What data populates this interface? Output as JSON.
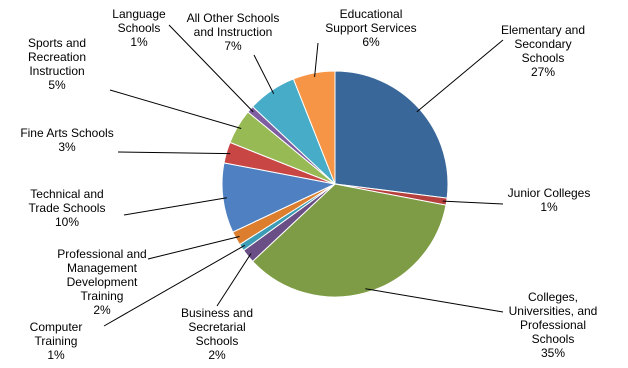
{
  "chart_data": {
    "type": "pie",
    "categories": [
      "Elementary and Secondary Schools",
      "Junior Colleges",
      "Colleges, Universities, and Professional Schools",
      "Business and Secretarial Schools",
      "Computer Training",
      "Professional and Management Development Training",
      "Technical and Trade Schools",
      "Fine Arts Schools",
      "Sports and Recreation Instruction",
      "Language Schools",
      "All Other Schools and Instruction",
      "Educational Support Services"
    ],
    "values": [
      27,
      1,
      35,
      2,
      1,
      2,
      10,
      3,
      5,
      1,
      7,
      6
    ],
    "slices": [
      {
        "label_lines": [
          "Elementary and",
          "Secondary",
          "Schools"
        ],
        "value": 27,
        "pct": "27%",
        "color": "#3A679A"
      },
      {
        "label_lines": [
          "Junior Colleges"
        ],
        "value": 1,
        "pct": "1%",
        "color": "#B5403E"
      },
      {
        "label_lines": [
          "Colleges,",
          "Universities, and",
          "Professional",
          "Schools"
        ],
        "value": 35,
        "pct": "35%",
        "color": "#7E9C46"
      },
      {
        "label_lines": [
          "Business and",
          "Secretarial",
          "Schools"
        ],
        "value": 2,
        "pct": "2%",
        "color": "#6A4E86"
      },
      {
        "label_lines": [
          "Computer",
          "Training"
        ],
        "value": 1,
        "pct": "1%",
        "color": "#3C9CB6"
      },
      {
        "label_lines": [
          "Professional and",
          "Management",
          "Development",
          "Training"
        ],
        "value": 2,
        "pct": "2%",
        "color": "#DC7E2E"
      },
      {
        "label_lines": [
          "Technical and",
          "Trade Schools"
        ],
        "value": 10,
        "pct": "10%",
        "color": "#4F80C1"
      },
      {
        "label_lines": [
          "Fine Arts Schools"
        ],
        "value": 3,
        "pct": "3%",
        "color": "#C84744"
      },
      {
        "label_lines": [
          "Sports and",
          "Recreation",
          "Instruction"
        ],
        "value": 5,
        "pct": "5%",
        "color": "#98BA55"
      },
      {
        "label_lines": [
          "Language",
          "Schools"
        ],
        "value": 1,
        "pct": "1%",
        "color": "#7E5EA0"
      },
      {
        "label_lines": [
          "All Other Schools",
          "and Instruction"
        ],
        "value": 7,
        "pct": "7%",
        "color": "#47ACC8"
      },
      {
        "label_lines": [
          "Educational",
          "Support Services"
        ],
        "value": 6,
        "pct": "6%",
        "color": "#F69545"
      }
    ],
    "start_angle_deg": 0,
    "direction": "clockwise",
    "legend": "none",
    "data_labels": "outside-with-leader-lines"
  }
}
